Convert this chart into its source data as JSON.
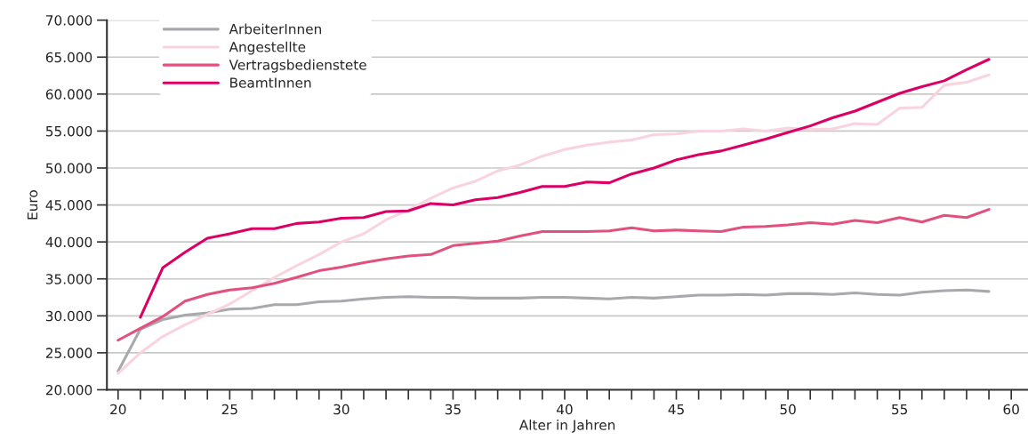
{
  "chart_data": {
    "type": "line",
    "xlabel": "Alter in Jahren",
    "ylabel": "Euro",
    "x": [
      20,
      21,
      22,
      23,
      24,
      25,
      26,
      27,
      28,
      29,
      30,
      31,
      32,
      33,
      34,
      35,
      36,
      37,
      38,
      39,
      40,
      41,
      42,
      43,
      44,
      45,
      46,
      47,
      48,
      49,
      50,
      51,
      52,
      53,
      54,
      55,
      56,
      57,
      58,
      59
    ],
    "series": [
      {
        "name": "ArbeiterInnen",
        "color": "#a7a9ac",
        "values": [
          22500,
          28200,
          29500,
          30100,
          30400,
          30900,
          31000,
          31500,
          31500,
          31900,
          32000,
          32300,
          32500,
          32600,
          32500,
          32500,
          32400,
          32400,
          32400,
          32500,
          32500,
          32400,
          32300,
          32500,
          32400,
          32600,
          32800,
          32800,
          32900,
          32800,
          33000,
          33000,
          32900,
          33100,
          32900,
          32800,
          33200,
          33400,
          33500,
          33300
        ]
      },
      {
        "name": "Angestellte",
        "color": "#f9d4de",
        "values": [
          22200,
          25000,
          27200,
          28800,
          30200,
          31600,
          33400,
          35200,
          36800,
          38300,
          40000,
          41100,
          43000,
          44300,
          45900,
          47300,
          48200,
          49600,
          50400,
          51600,
          52500,
          53100,
          53500,
          53800,
          54500,
          54600,
          55000,
          55000,
          55300,
          55000,
          55400,
          55200,
          55300,
          56000,
          55900,
          58100,
          58200,
          61200,
          61600,
          62600
        ]
      },
      {
        "name": "Vertragsbedienstete",
        "color": "#e2507e",
        "values": [
          26700,
          28300,
          29900,
          32000,
          32900,
          33500,
          33800,
          34400,
          35200,
          36100,
          36600,
          37200,
          37700,
          38100,
          38300,
          39500,
          39800,
          40100,
          40800,
          41400,
          41400,
          41400,
          41500,
          41900,
          41500,
          41600,
          41500,
          41400,
          42000,
          42100,
          42300,
          42600,
          42400,
          42900,
          42600,
          43300,
          42700,
          43600,
          43300,
          44400
        ]
      },
      {
        "name": "BeamtInnen",
        "color": "#dc0064",
        "values": [
          null,
          29800,
          36500,
          38600,
          40500,
          41100,
          41800,
          41800,
          42500,
          42700,
          43200,
          43300,
          44100,
          44200,
          45200,
          45000,
          45700,
          46000,
          46700,
          47500,
          47500,
          48100,
          48000,
          49200,
          50000,
          51100,
          51800,
          52300,
          53100,
          53900,
          54800,
          55700,
          56800,
          57700,
          58900,
          60100,
          61000,
          61800,
          63300,
          64700
        ]
      }
    ],
    "xlim": [
      19.5,
      60.75
    ],
    "xticks": [
      20,
      {
        "value": 21,
        "label": null
      },
      {
        "value": 22,
        "label": null
      },
      {
        "value": 23,
        "label": null
      },
      {
        "value": 24,
        "label": null
      },
      25,
      {
        "value": 26,
        "label": null
      },
      {
        "value": 27,
        "label": null
      },
      {
        "value": 28,
        "label": null
      },
      {
        "value": 29,
        "label": null
      },
      30,
      {
        "value": 31,
        "label": null
      },
      {
        "value": 32,
        "label": null
      },
      {
        "value": 33,
        "label": null
      },
      {
        "value": 34,
        "label": null
      },
      35,
      {
        "value": 36,
        "label": null
      },
      {
        "value": 37,
        "label": null
      },
      {
        "value": 38,
        "label": null
      },
      {
        "value": 39,
        "label": null
      },
      40,
      {
        "value": 41,
        "label": null
      },
      {
        "value": 42,
        "label": null
      },
      {
        "value": 43,
        "label": null
      },
      {
        "value": 44,
        "label": null
      },
      45,
      {
        "value": 46,
        "label": null
      },
      {
        "value": 47,
        "label": null
      },
      {
        "value": 48,
        "label": null
      },
      {
        "value": 49,
        "label": null
      },
      50,
      {
        "value": 51,
        "label": null
      },
      {
        "value": 52,
        "label": null
      },
      {
        "value": 53,
        "label": null
      },
      {
        "value": 54,
        "label": null
      },
      55,
      {
        "value": 56,
        "label": null
      },
      {
        "value": 57,
        "label": null
      },
      {
        "value": 58,
        "label": null
      },
      {
        "value": 59,
        "label": null
      },
      60
    ],
    "ylim": [
      20000,
      70000
    ],
    "yticks": [
      {
        "value": 20000,
        "label": "20.000"
      },
      {
        "value": 25000,
        "label": "25.000"
      },
      {
        "value": 30000,
        "label": "30.000"
      },
      {
        "value": 35000,
        "label": "35.000"
      },
      {
        "value": 40000,
        "label": "40.000"
      },
      {
        "value": 45000,
        "label": "45.000"
      },
      {
        "value": 50000,
        "label": "50.000"
      },
      {
        "value": 55000,
        "label": "55.000"
      },
      {
        "value": 60000,
        "label": "60.000"
      },
      {
        "value": 65000,
        "label": "65.000"
      },
      {
        "value": 70000,
        "label": "70.000"
      }
    ],
    "grid": "y",
    "legend": "top left",
    "marker": "none",
    "line_style": "solid"
  }
}
